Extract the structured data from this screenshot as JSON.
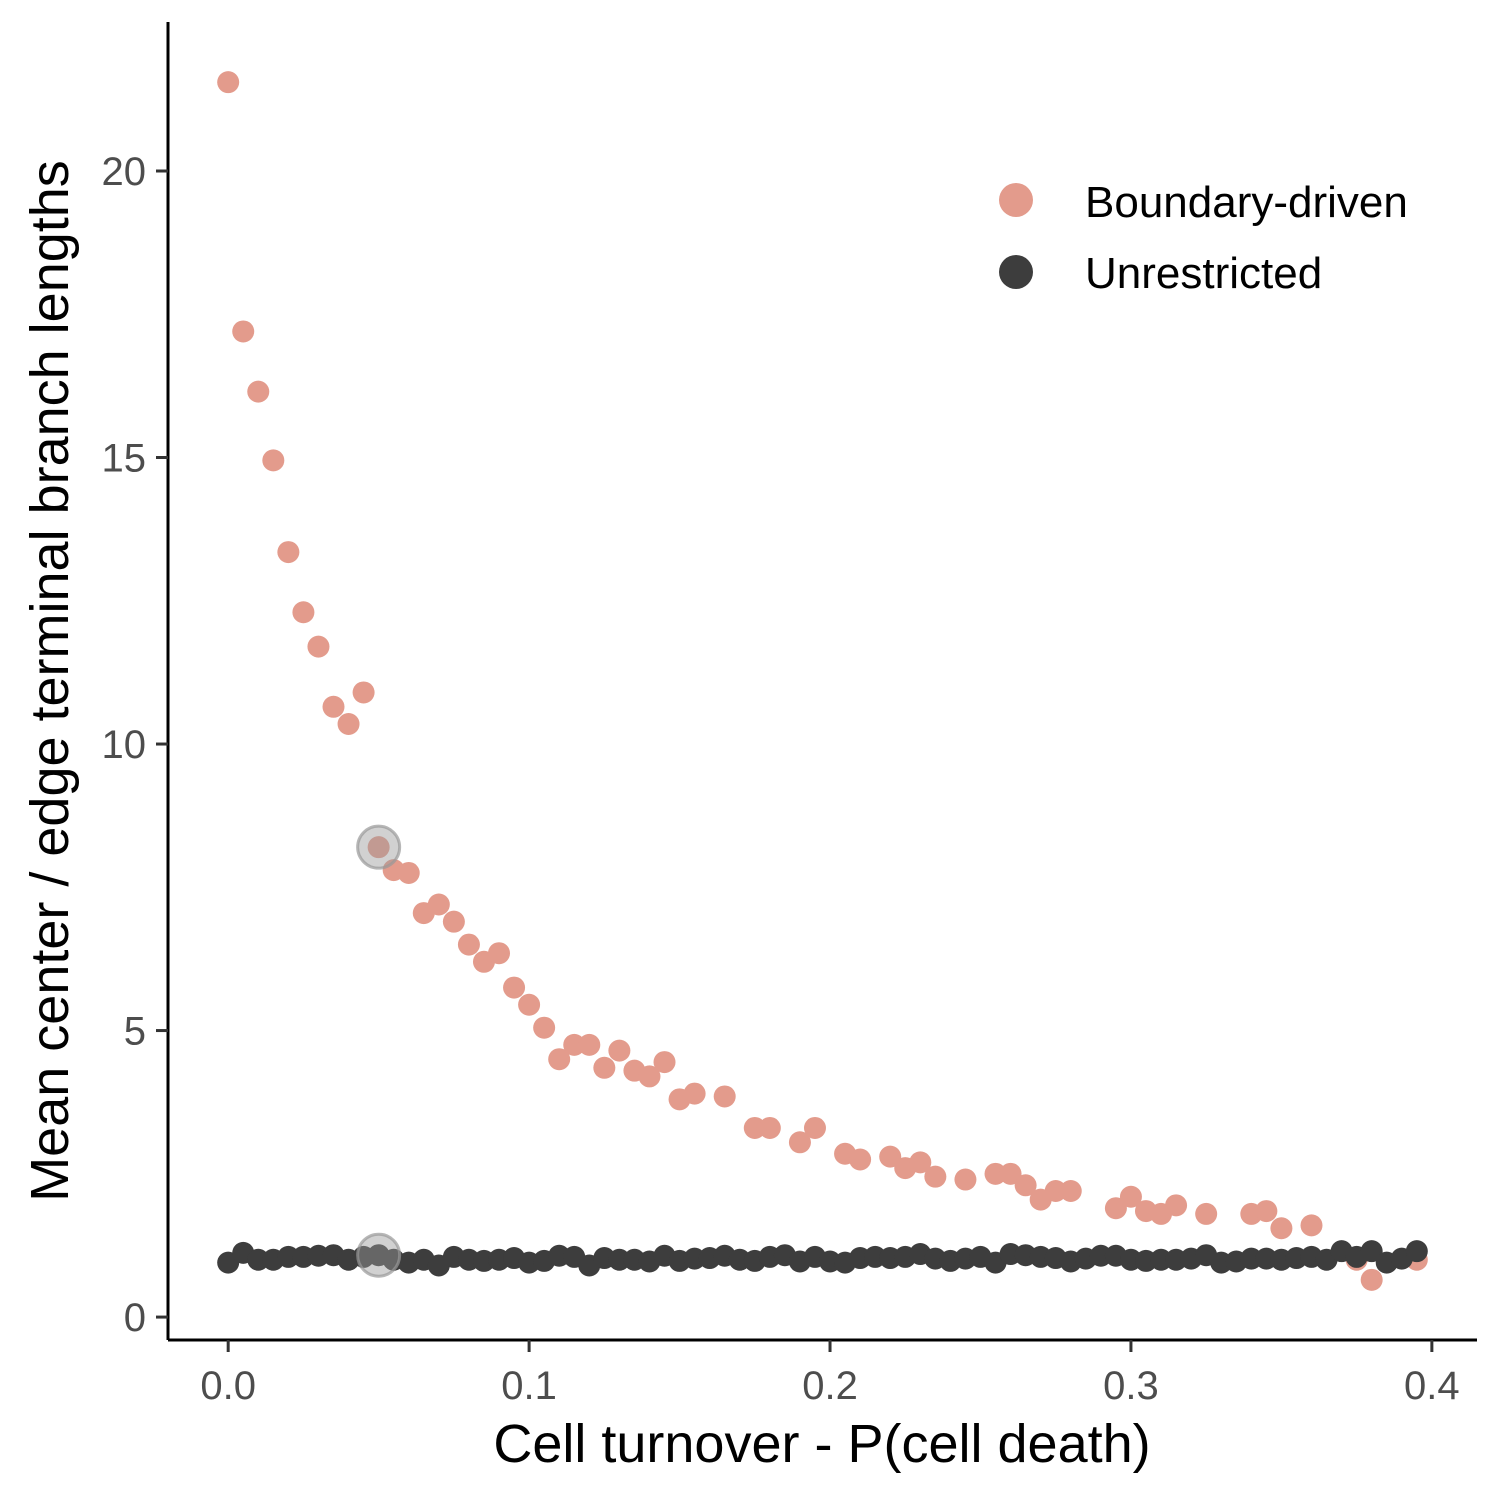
{
  "chart_data": {
    "type": "scatter",
    "xlabel": "Cell turnover - P(cell death)",
    "ylabel": "Mean center / edge terminal branch lengths",
    "xlim": [
      -0.02,
      0.415
    ],
    "ylim": [
      -0.4,
      22.6
    ],
    "xticks": [
      {
        "value": 0.0,
        "label": "0.0"
      },
      {
        "value": 0.1,
        "label": "0.1"
      },
      {
        "value": 0.2,
        "label": "0.2"
      },
      {
        "value": 0.3,
        "label": "0.3"
      },
      {
        "value": 0.4,
        "label": "0.4"
      }
    ],
    "yticks": [
      {
        "value": 0,
        "label": "0"
      },
      {
        "value": 5,
        "label": "5"
      },
      {
        "value": 10,
        "label": "10"
      },
      {
        "value": 15,
        "label": "15"
      },
      {
        "value": 20,
        "label": "20"
      }
    ],
    "grid": false,
    "legend_position": "top-right",
    "series": [
      {
        "name": "Boundary-driven",
        "color": "#e39b8c",
        "x": [
          0.0,
          0.005,
          0.01,
          0.015,
          0.02,
          0.025,
          0.03,
          0.035,
          0.04,
          0.045,
          0.05,
          0.055,
          0.06,
          0.065,
          0.07,
          0.075,
          0.08,
          0.085,
          0.09,
          0.095,
          0.1,
          0.105,
          0.11,
          0.115,
          0.12,
          0.125,
          0.13,
          0.135,
          0.14,
          0.145,
          0.15,
          0.155,
          0.165,
          0.175,
          0.18,
          0.19,
          0.195,
          0.205,
          0.21,
          0.22,
          0.225,
          0.23,
          0.235,
          0.245,
          0.255,
          0.26,
          0.265,
          0.27,
          0.275,
          0.28,
          0.295,
          0.3,
          0.305,
          0.31,
          0.315,
          0.325,
          0.34,
          0.345,
          0.35,
          0.36,
          0.375,
          0.38,
          0.395
        ],
        "y": [
          21.55,
          17.2,
          16.15,
          14.95,
          13.35,
          12.3,
          11.7,
          10.65,
          10.35,
          10.9,
          8.2,
          7.8,
          7.75,
          7.05,
          7.2,
          6.9,
          6.5,
          6.2,
          6.35,
          5.75,
          5.45,
          5.05,
          4.5,
          4.75,
          4.75,
          4.35,
          4.65,
          4.3,
          4.2,
          4.45,
          3.8,
          3.9,
          3.85,
          3.3,
          3.3,
          3.05,
          3.3,
          2.85,
          2.75,
          2.8,
          2.6,
          2.7,
          2.45,
          2.4,
          2.5,
          2.5,
          2.3,
          2.05,
          2.2,
          2.2,
          1.9,
          2.1,
          1.85,
          1.8,
          1.95,
          1.8,
          1.8,
          1.85,
          1.55,
          1.6,
          1.0,
          0.65,
          1.0
        ]
      },
      {
        "name": "Unrestricted",
        "color": "#3d3d3d",
        "x": [
          0.0,
          0.005,
          0.01,
          0.015,
          0.02,
          0.025,
          0.03,
          0.035,
          0.04,
          0.045,
          0.05,
          0.055,
          0.06,
          0.065,
          0.07,
          0.075,
          0.08,
          0.085,
          0.09,
          0.095,
          0.1,
          0.105,
          0.11,
          0.115,
          0.12,
          0.125,
          0.13,
          0.135,
          0.14,
          0.145,
          0.15,
          0.155,
          0.16,
          0.165,
          0.17,
          0.175,
          0.18,
          0.185,
          0.19,
          0.195,
          0.2,
          0.205,
          0.21,
          0.215,
          0.22,
          0.225,
          0.23,
          0.235,
          0.24,
          0.245,
          0.25,
          0.255,
          0.26,
          0.265,
          0.27,
          0.275,
          0.28,
          0.285,
          0.29,
          0.295,
          0.3,
          0.305,
          0.31,
          0.315,
          0.32,
          0.325,
          0.33,
          0.335,
          0.34,
          0.345,
          0.35,
          0.355,
          0.36,
          0.365,
          0.37,
          0.375,
          0.38,
          0.385,
          0.39,
          0.395
        ],
        "y": [
          0.95,
          1.12,
          1.0,
          1.0,
          1.05,
          1.05,
          1.07,
          1.08,
          1.0,
          1.05,
          1.08,
          1.0,
          0.95,
          1.0,
          0.9,
          1.05,
          1.0,
          0.98,
          1.0,
          1.03,
          0.95,
          0.98,
          1.07,
          1.05,
          0.9,
          1.03,
          1.0,
          1.0,
          0.97,
          1.07,
          0.98,
          1.02,
          1.03,
          1.07,
          1.0,
          0.98,
          1.05,
          1.08,
          0.97,
          1.05,
          0.97,
          0.95,
          1.03,
          1.05,
          1.03,
          1.05,
          1.1,
          1.02,
          0.98,
          1.02,
          1.05,
          0.95,
          1.1,
          1.08,
          1.05,
          1.03,
          0.97,
          1.02,
          1.07,
          1.07,
          1.0,
          0.98,
          1.0,
          1.0,
          1.02,
          1.08,
          0.95,
          0.97,
          1.02,
          1.02,
          1.0,
          1.03,
          1.05,
          1.0,
          1.15,
          1.05,
          1.15,
          0.95,
          1.02,
          1.15
        ]
      }
    ],
    "highlights": [
      {
        "x": 0.05,
        "y": 8.2
      },
      {
        "x": 0.05,
        "y": 1.08
      }
    ],
    "highlight_color": "#999999"
  }
}
